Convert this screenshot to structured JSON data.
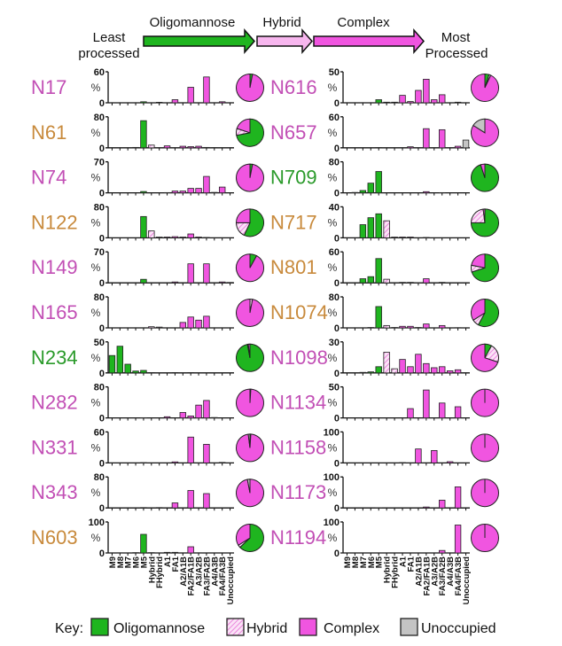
{
  "header": {
    "least": "Least",
    "least_sub": "processed",
    "most": "Most",
    "most_sub": "Processed",
    "stages": [
      {
        "label": "Oligomannose",
        "color": "#1fb51f"
      },
      {
        "label": "Hybrid",
        "color": "#f7b6ee"
      },
      {
        "label": "Complex",
        "color": "#f055e0"
      }
    ]
  },
  "categories": [
    "M9",
    "M8",
    "M7",
    "M6",
    "M5",
    "Hybrid",
    "FHybrid",
    "A1",
    "FA1",
    "A2/A1B",
    "FA2/FA1B",
    "A3/A2B",
    "FA3/FA2B",
    "A4/A3B",
    "FA4/FA3B",
    "Unoccupied"
  ],
  "category_groups": [
    "oligomannose",
    "oligomannose",
    "oligomannose",
    "oligomannose",
    "oligomannose",
    "hybrid",
    "hybrid",
    "complex",
    "complex",
    "complex",
    "complex",
    "complex",
    "complex",
    "complex",
    "complex",
    "unoccupied"
  ],
  "colors": {
    "oligomannose": "#1fb51f",
    "hybrid": "#f7c4ef",
    "complex": "#f055e0",
    "unoccupied": "#c4c4c4",
    "label_complex": "#c24fb5",
    "label_mixed": "#c88a3c",
    "label_oligomannose": "#2a9a2a"
  },
  "legend": {
    "title": "Key:",
    "items": [
      {
        "label": "Oligomannose",
        "key": "oligomannose"
      },
      {
        "label": "Hybrid",
        "key": "hybrid"
      },
      {
        "label": "Complex",
        "key": "complex"
      },
      {
        "label": "Unoccupied",
        "key": "unoccupied"
      }
    ]
  },
  "chart_data": [
    {
      "type": "bar",
      "title": "N17",
      "label_color": "#c24fb5",
      "ylabel": "%",
      "ylim": [
        0,
        60
      ],
      "values": [
        0,
        0,
        0,
        0,
        2,
        0,
        1,
        0,
        6,
        0,
        30,
        0,
        50,
        0,
        2,
        0
      ],
      "pie": {
        "oligomannose": 3,
        "hybrid": 0,
        "complex": 97,
        "unoccupied": 0
      }
    },
    {
      "type": "bar",
      "title": "N61",
      "label_color": "#c88a3c",
      "ylabel": "%",
      "ylim": [
        0,
        80
      ],
      "values": [
        0,
        0,
        0,
        1,
        70,
        7,
        0,
        5,
        0,
        4,
        3,
        4,
        1,
        0.5,
        0,
        0
      ],
      "pie": {
        "oligomannose": 72,
        "hybrid": 8,
        "complex": 20,
        "unoccupied": 0
      }
    },
    {
      "type": "bar",
      "title": "N74",
      "label_color": "#c24fb5",
      "ylabel": "%",
      "ylim": [
        0,
        70
      ],
      "values": [
        0,
        0,
        0,
        0,
        3,
        0,
        0,
        0.5,
        4,
        4,
        10,
        10,
        37,
        1,
        13,
        0
      ],
      "pie": {
        "oligomannose": 3,
        "hybrid": 0,
        "complex": 97,
        "unoccupied": 0
      }
    },
    {
      "type": "bar",
      "title": "N122",
      "label_color": "#c88a3c",
      "ylabel": "%",
      "ylim": [
        0,
        80
      ],
      "values": [
        0,
        0,
        0,
        0,
        55,
        18,
        2,
        2,
        3,
        2,
        10,
        2,
        1,
        0,
        0,
        0
      ],
      "pie": {
        "oligomannose": 57,
        "hybrid": 18,
        "complex": 25,
        "unoccupied": 0
      }
    },
    {
      "type": "bar",
      "title": "N149",
      "label_color": "#c24fb5",
      "ylabel": "%",
      "ylim": [
        0,
        70
      ],
      "values": [
        0,
        0,
        0,
        0,
        8,
        0,
        0,
        0,
        2,
        0,
        43,
        0,
        43,
        0,
        2,
        1
      ],
      "pie": {
        "oligomannose": 8,
        "hybrid": 0,
        "complex": 92,
        "unoccupied": 0
      }
    },
    {
      "type": "bar",
      "title": "N165",
      "label_color": "#c24fb5",
      "ylabel": "%",
      "ylim": [
        0,
        80
      ],
      "values": [
        0,
        0,
        0,
        0,
        0,
        3,
        2,
        0,
        0,
        14,
        28,
        20,
        30,
        0,
        0,
        0
      ],
      "pie": {
        "oligomannose": 0,
        "hybrid": 3,
        "complex": 97,
        "unoccupied": 0
      }
    },
    {
      "type": "bar",
      "title": "N234",
      "label_color": "#2a9a2a",
      "ylabel": "%",
      "ylim": [
        0,
        50
      ],
      "values": [
        28,
        43,
        14,
        3,
        4,
        0.5,
        0,
        0,
        0.5,
        0,
        0.5,
        0,
        0,
        0,
        0,
        0
      ],
      "pie": {
        "oligomannose": 97,
        "hybrid": 1,
        "complex": 2,
        "unoccupied": 0
      }
    },
    {
      "type": "bar",
      "title": "N282",
      "label_color": "#c24fb5",
      "ylabel": "%",
      "ylim": [
        0,
        80
      ],
      "values": [
        0,
        0,
        0,
        0,
        0.5,
        0,
        0,
        3,
        0,
        14,
        5,
        33,
        45,
        1,
        0,
        0
      ],
      "pie": {
        "oligomannose": 1,
        "hybrid": 0,
        "complex": 99,
        "unoccupied": 0
      }
    },
    {
      "type": "bar",
      "title": "N331",
      "label_color": "#c24fb5",
      "ylabel": "%",
      "ylim": [
        0,
        60
      ],
      "values": [
        0,
        0,
        0,
        0,
        0.5,
        0,
        0,
        0,
        2,
        0,
        50,
        0,
        36,
        0,
        1,
        0
      ],
      "pie": {
        "oligomannose": 1,
        "hybrid": 0,
        "complex": 97,
        "unoccupied": 2
      }
    },
    {
      "type": "bar",
      "title": "N343",
      "label_color": "#c24fb5",
      "ylabel": "%",
      "ylim": [
        0,
        80
      ],
      "values": [
        0,
        0,
        0,
        0,
        1,
        0,
        1,
        0,
        13,
        0,
        45,
        0,
        37,
        0,
        0,
        0
      ],
      "pie": {
        "oligomannose": 0,
        "hybrid": 0,
        "complex": 97,
        "unoccupied": 3
      }
    },
    {
      "type": "bar",
      "title": "N603",
      "label_color": "#c88a3c",
      "ylabel": "%",
      "ylim": [
        0,
        100
      ],
      "values": [
        0,
        0.5,
        0,
        1,
        60,
        1,
        0,
        2,
        2,
        0,
        20,
        0.5,
        0,
        0,
        0,
        0
      ],
      "pie": {
        "oligomannose": 63,
        "hybrid": 3,
        "complex": 34,
        "unoccupied": 0
      }
    },
    {
      "type": "bar",
      "title": "N616",
      "label_color": "#c24fb5",
      "ylabel": "%",
      "ylim": [
        0,
        50
      ],
      "values": [
        0,
        0,
        0,
        0,
        5,
        1,
        1,
        12,
        2,
        20,
        38,
        5,
        13,
        0,
        1,
        0
      ],
      "pie": {
        "oligomannose": 5,
        "hybrid": 2,
        "complex": 93,
        "unoccupied": 0
      }
    },
    {
      "type": "bar",
      "title": "N657",
      "label_color": "#c24fb5",
      "ylabel": "%",
      "ylim": [
        0,
        60
      ],
      "values": [
        0,
        0,
        0,
        0,
        0.5,
        0,
        0,
        0,
        2,
        0,
        37,
        0,
        35,
        0,
        3,
        15
      ],
      "pie": {
        "oligomannose": 0,
        "hybrid": 0,
        "complex": 84,
        "unoccupied": 16
      }
    },
    {
      "type": "bar",
      "title": "N709",
      "label_color": "#2a9a2a",
      "ylabel": "%",
      "ylim": [
        0,
        80
      ],
      "values": [
        0,
        1,
        6,
        25,
        55,
        0,
        0,
        0,
        0,
        0,
        3,
        0,
        0.5,
        0,
        0,
        0
      ],
      "pie": {
        "oligomannose": 95,
        "hybrid": 0,
        "complex": 5,
        "unoccupied": 0
      }
    },
    {
      "type": "bar",
      "title": "N717",
      "label_color": "#c88a3c",
      "ylabel": "%",
      "ylim": [
        0,
        40
      ],
      "values": [
        0,
        0,
        17,
        26,
        31,
        22,
        1,
        1,
        1,
        0,
        0.5,
        0,
        0,
        0,
        0,
        0
      ],
      "pie": {
        "oligomannose": 75,
        "hybrid": 23,
        "complex": 2,
        "unoccupied": 0
      }
    },
    {
      "type": "bar",
      "title": "N801",
      "label_color": "#c88a3c",
      "ylabel": "%",
      "ylim": [
        0,
        60
      ],
      "values": [
        0,
        0,
        8,
        12,
        47,
        7,
        0,
        1,
        1,
        0.5,
        8,
        0,
        1,
        0,
        0,
        0
      ],
      "pie": {
        "oligomannose": 70,
        "hybrid": 8,
        "complex": 22,
        "unoccupied": 0
      }
    },
    {
      "type": "bar",
      "title": "N1074",
      "label_color": "#c88a3c",
      "ylabel": "%",
      "ylim": [
        0,
        80
      ],
      "values": [
        0,
        0,
        0,
        1,
        55,
        6,
        1,
        4,
        4,
        1,
        10,
        0,
        6,
        0,
        0.5,
        0
      ],
      "pie": {
        "oligomannose": 58,
        "hybrid": 8,
        "complex": 34,
        "unoccupied": 0
      }
    },
    {
      "type": "bar",
      "title": "N1098",
      "label_color": "#c24fb5",
      "ylabel": "%",
      "ylim": [
        0,
        30
      ],
      "values": [
        0,
        0,
        0.5,
        1,
        6,
        20,
        4,
        13,
        6,
        18,
        9,
        5,
        6,
        2,
        3,
        0
      ],
      "pie": {
        "oligomannose": 8,
        "hybrid": 22,
        "complex": 70,
        "unoccupied": 0
      }
    },
    {
      "type": "bar",
      "title": "N1134",
      "label_color": "#c24fb5",
      "ylabel": "%",
      "ylim": [
        0,
        50
      ],
      "values": [
        0,
        0,
        0,
        0,
        0,
        0,
        0,
        0,
        15,
        0,
        45,
        0,
        24,
        0,
        18,
        0
      ],
      "pie": {
        "oligomannose": 0,
        "hybrid": 0,
        "complex": 100,
        "unoccupied": 0
      }
    },
    {
      "type": "bar",
      "title": "N1158",
      "label_color": "#c24fb5",
      "ylabel": "%",
      "ylim": [
        0,
        100
      ],
      "values": [
        0,
        0,
        0,
        0,
        0,
        0,
        0,
        1,
        0,
        45,
        0,
        40,
        0,
        4,
        0,
        0
      ],
      "pie": {
        "oligomannose": 0,
        "hybrid": 0,
        "complex": 100,
        "unoccupied": 0
      }
    },
    {
      "type": "bar",
      "title": "N1173",
      "label_color": "#c24fb5",
      "ylabel": "%",
      "ylim": [
        0,
        100
      ],
      "values": [
        0,
        0,
        0,
        0,
        0.5,
        0,
        0,
        0,
        0,
        0,
        3,
        0,
        25,
        0,
        68,
        0
      ],
      "pie": {
        "oligomannose": 0,
        "hybrid": 0,
        "complex": 100,
        "unoccupied": 0
      }
    },
    {
      "type": "bar",
      "title": "N1194",
      "label_color": "#c24fb5",
      "ylabel": "%",
      "ylim": [
        0,
        100
      ],
      "values": [
        0,
        0,
        0,
        0,
        0,
        0,
        0,
        0,
        0,
        0,
        0,
        0,
        8,
        0,
        90,
        0
      ],
      "pie": {
        "oligomannose": 0,
        "hybrid": 0,
        "complex": 100,
        "unoccupied": 0
      }
    }
  ]
}
